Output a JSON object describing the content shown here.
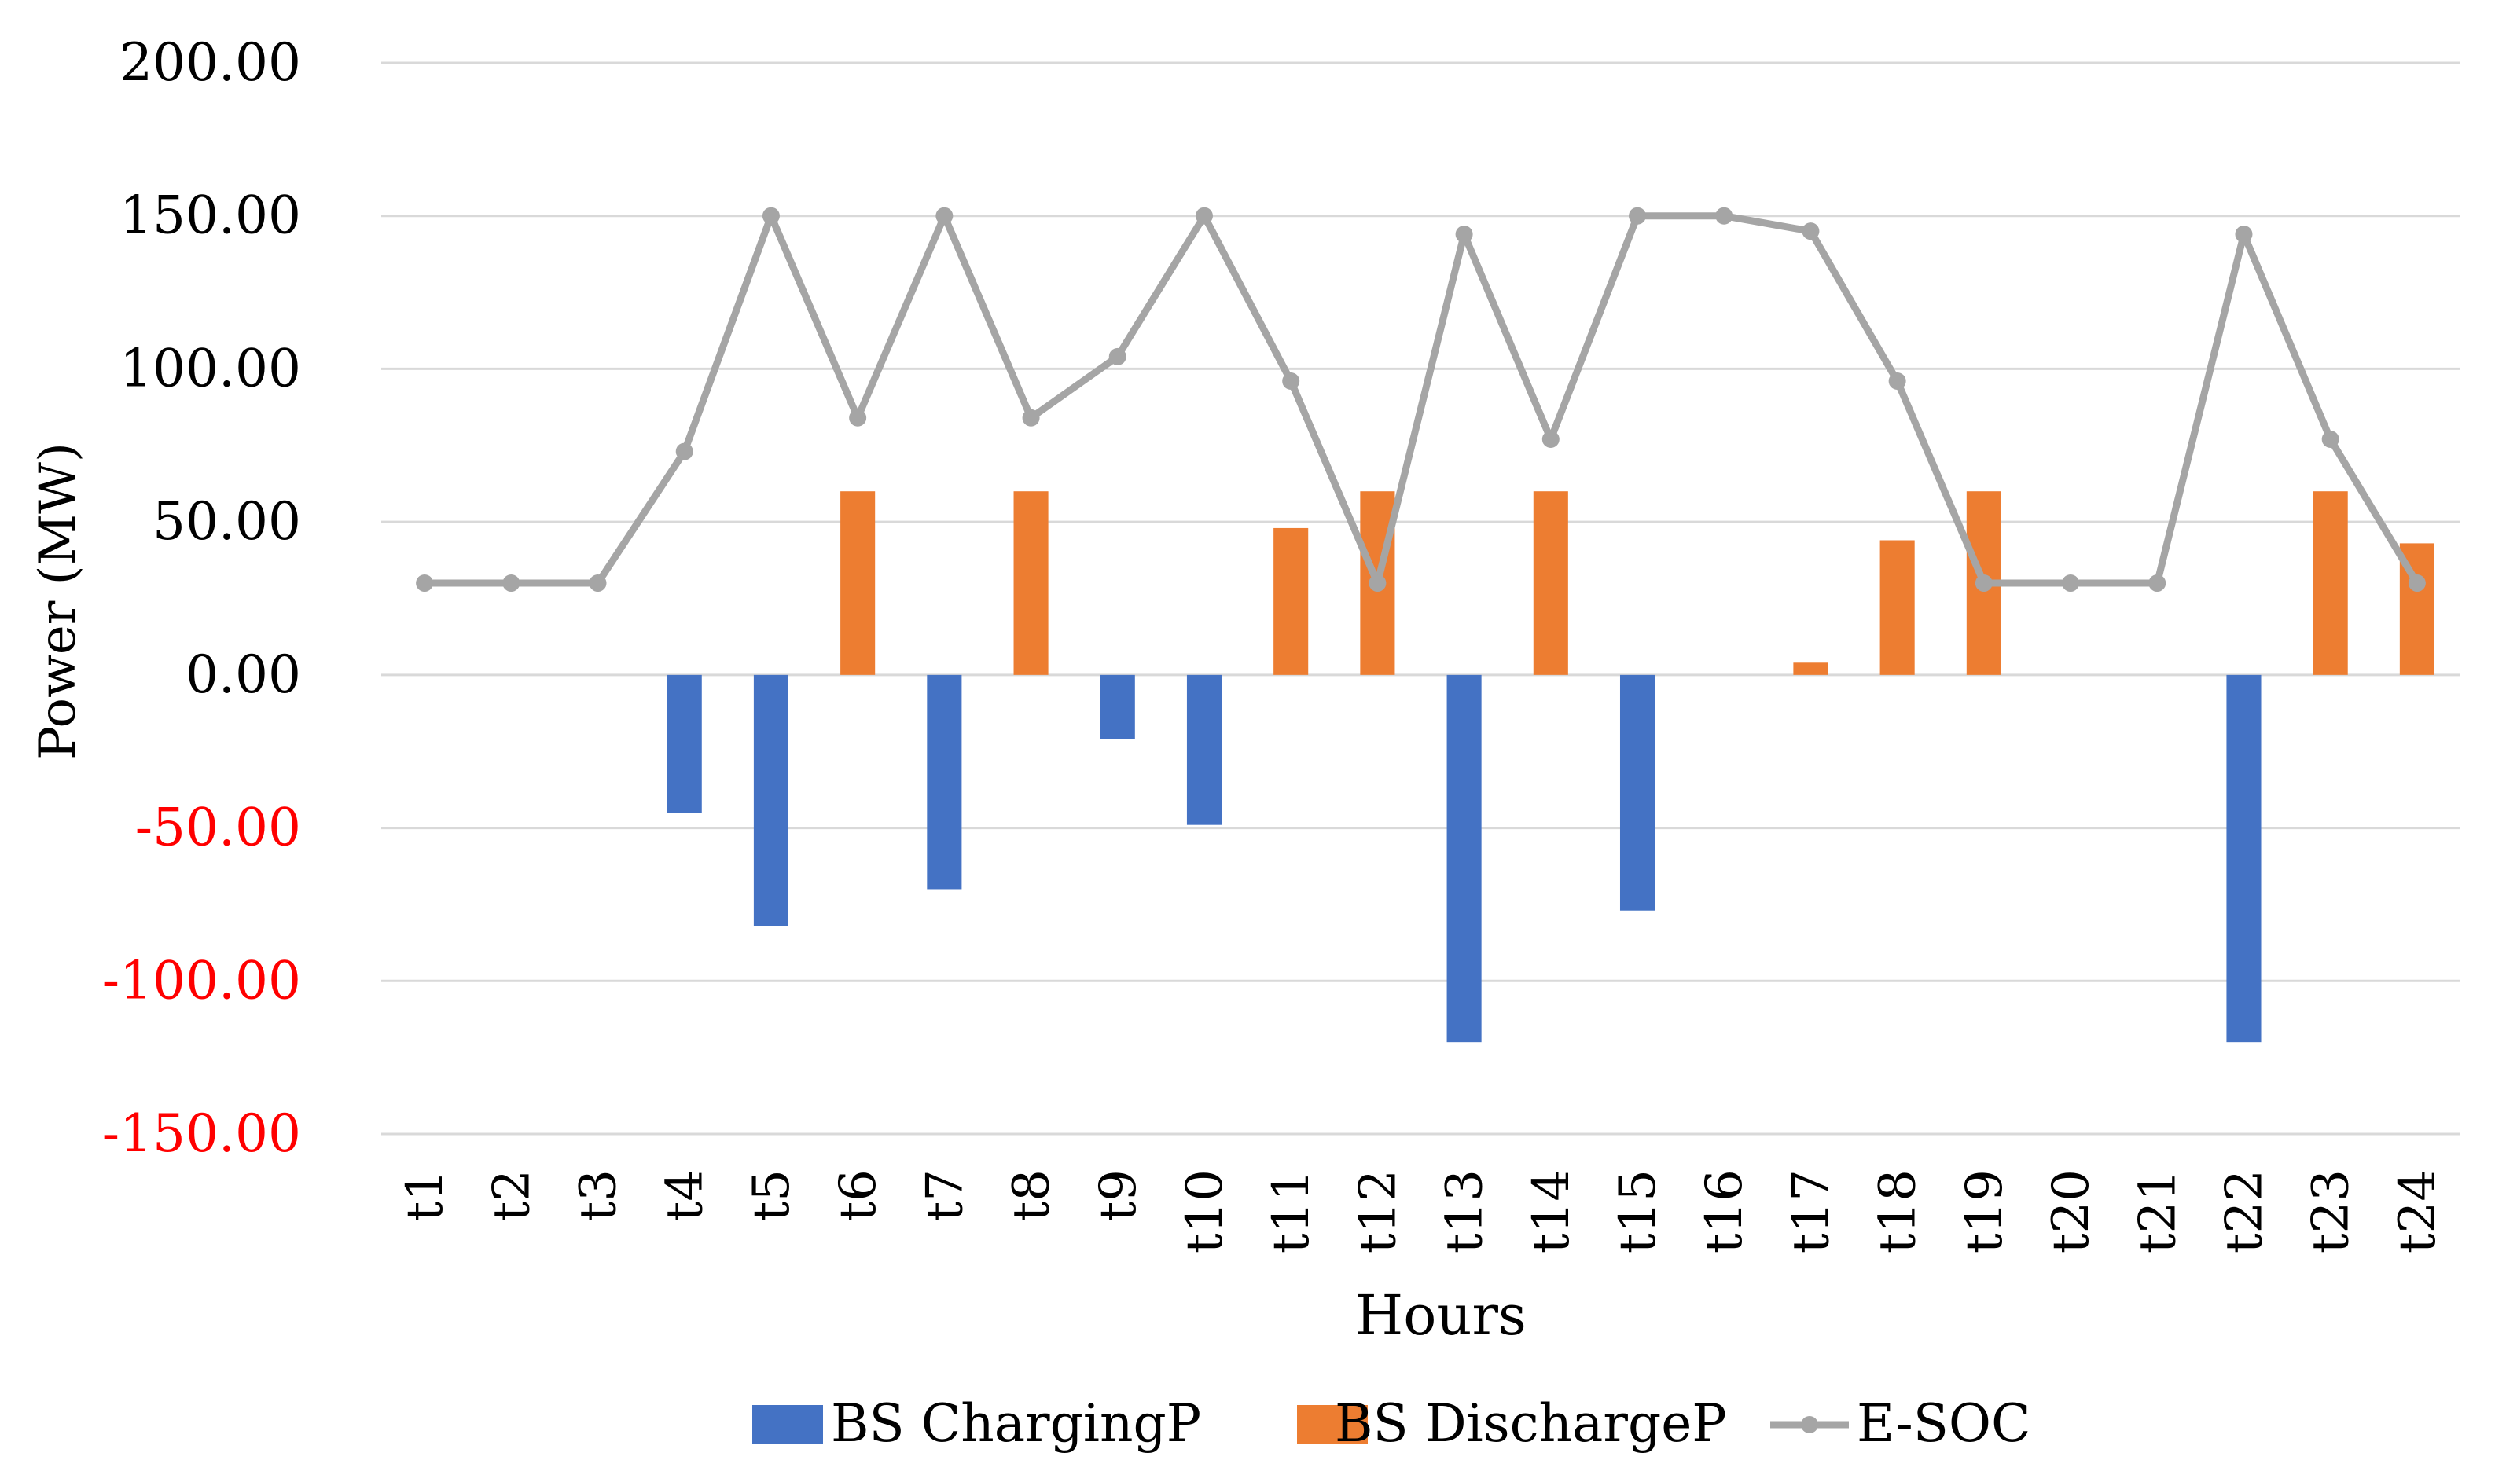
{
  "chart_data": {
    "type": "bar",
    "xlabel": "Hours",
    "ylabel": "Power (MW)",
    "ylim": [
      -150,
      200
    ],
    "ytick_step": 50,
    "ytick_labels": [
      "200.00",
      "150.00",
      "100.00",
      "50.00",
      "0.00",
      "-50.00",
      "-100.00",
      "-150.00"
    ],
    "categories": [
      "t1",
      "t2",
      "t3",
      "t4",
      "t5",
      "t6",
      "t7",
      "t8",
      "t9",
      "t10",
      "t11",
      "t12",
      "t13",
      "t14",
      "t15",
      "t16",
      "t17",
      "t18",
      "t19",
      "t20",
      "t21",
      "t22",
      "t23",
      "t24"
    ],
    "grid": true,
    "legend_position": "bottom",
    "series": [
      {
        "name": "BS ChargingP",
        "kind": "bar",
        "color": "#4472C4",
        "values": [
          0,
          0,
          0,
          -45,
          -82,
          0,
          -70,
          0,
          -21,
          -49,
          0,
          0,
          -120,
          0,
          -77,
          0,
          0,
          0,
          0,
          0,
          0,
          -120,
          0,
          0
        ]
      },
      {
        "name": "BS DischargeP",
        "kind": "bar",
        "color": "#ED7D31",
        "values": [
          0,
          0,
          0,
          0,
          0,
          60,
          0,
          60,
          0,
          0,
          48,
          60,
          0,
          60,
          0,
          0,
          4,
          44,
          60,
          0,
          0,
          0,
          60,
          43
        ]
      },
      {
        "name": "E-SOC",
        "kind": "line",
        "color": "#A5A5A5",
        "values": [
          30,
          30,
          30,
          73,
          150,
          84,
          150,
          84,
          104,
          150,
          96,
          30,
          144,
          77,
          150,
          150,
          145,
          96,
          30,
          30,
          30,
          144,
          77,
          30
        ]
      }
    ],
    "colors": {
      "negative_tick": "#FF0000",
      "tick_text": "#000000",
      "grid": "#D9D9D9"
    }
  }
}
